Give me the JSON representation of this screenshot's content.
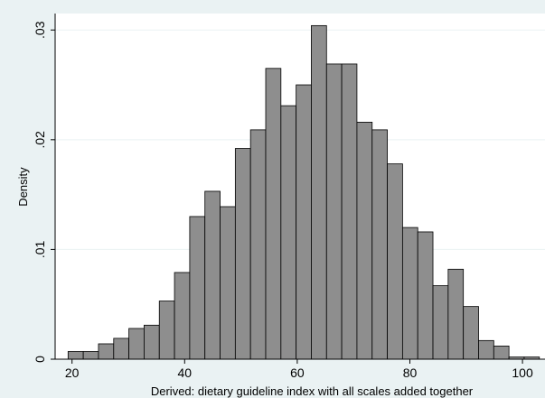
{
  "chart_data": {
    "type": "bar",
    "subtype": "histogram",
    "xlabel": "Derived: dietary guideline index with all scales added together",
    "ylabel": "Density",
    "xlim": [
      17,
      104
    ],
    "ylim": [
      0,
      0.0315
    ],
    "x_ticks": [
      20,
      40,
      60,
      80,
      100
    ],
    "y_ticks": [
      0,
      0.01,
      0.02,
      0.03
    ],
    "y_tick_labels": [
      "0",
      ".01",
      ".02",
      ".03"
    ],
    "grid": "horizontal",
    "bin_width": 2.7,
    "bins": [
      {
        "start": 19.3,
        "value": 0.0007
      },
      {
        "start": 22.0,
        "value": 0.0007
      },
      {
        "start": 24.7,
        "value": 0.0014
      },
      {
        "start": 27.4,
        "value": 0.0019
      },
      {
        "start": 30.1,
        "value": 0.0028
      },
      {
        "start": 32.8,
        "value": 0.0031
      },
      {
        "start": 35.5,
        "value": 0.0053
      },
      {
        "start": 38.2,
        "value": 0.0079
      },
      {
        "start": 40.9,
        "value": 0.013
      },
      {
        "start": 43.6,
        "value": 0.0153
      },
      {
        "start": 46.3,
        "value": 0.0139
      },
      {
        "start": 49.0,
        "value": 0.0192
      },
      {
        "start": 51.7,
        "value": 0.0209
      },
      {
        "start": 54.4,
        "value": 0.0265
      },
      {
        "start": 57.1,
        "value": 0.0231
      },
      {
        "start": 59.8,
        "value": 0.025
      },
      {
        "start": 62.5,
        "value": 0.0304
      },
      {
        "start": 65.2,
        "value": 0.0269
      },
      {
        "start": 67.9,
        "value": 0.0269
      },
      {
        "start": 70.6,
        "value": 0.0216
      },
      {
        "start": 73.3,
        "value": 0.0209
      },
      {
        "start": 76.0,
        "value": 0.0178
      },
      {
        "start": 78.7,
        "value": 0.012
      },
      {
        "start": 81.4,
        "value": 0.0116
      },
      {
        "start": 84.1,
        "value": 0.0067
      },
      {
        "start": 86.8,
        "value": 0.0082
      },
      {
        "start": 89.5,
        "value": 0.0048
      },
      {
        "start": 92.2,
        "value": 0.0017
      },
      {
        "start": 94.9,
        "value": 0.0012
      },
      {
        "start": 97.6,
        "value": 0.0002
      },
      {
        "start": 100.3,
        "value": 0.0002
      }
    ]
  },
  "colors": {
    "background": "#eaf2f3",
    "plot_region": "#ffffff",
    "bar_fill": "#8e8e8e",
    "bar_stroke": "#000000",
    "gridline": "#eaf2f3"
  }
}
